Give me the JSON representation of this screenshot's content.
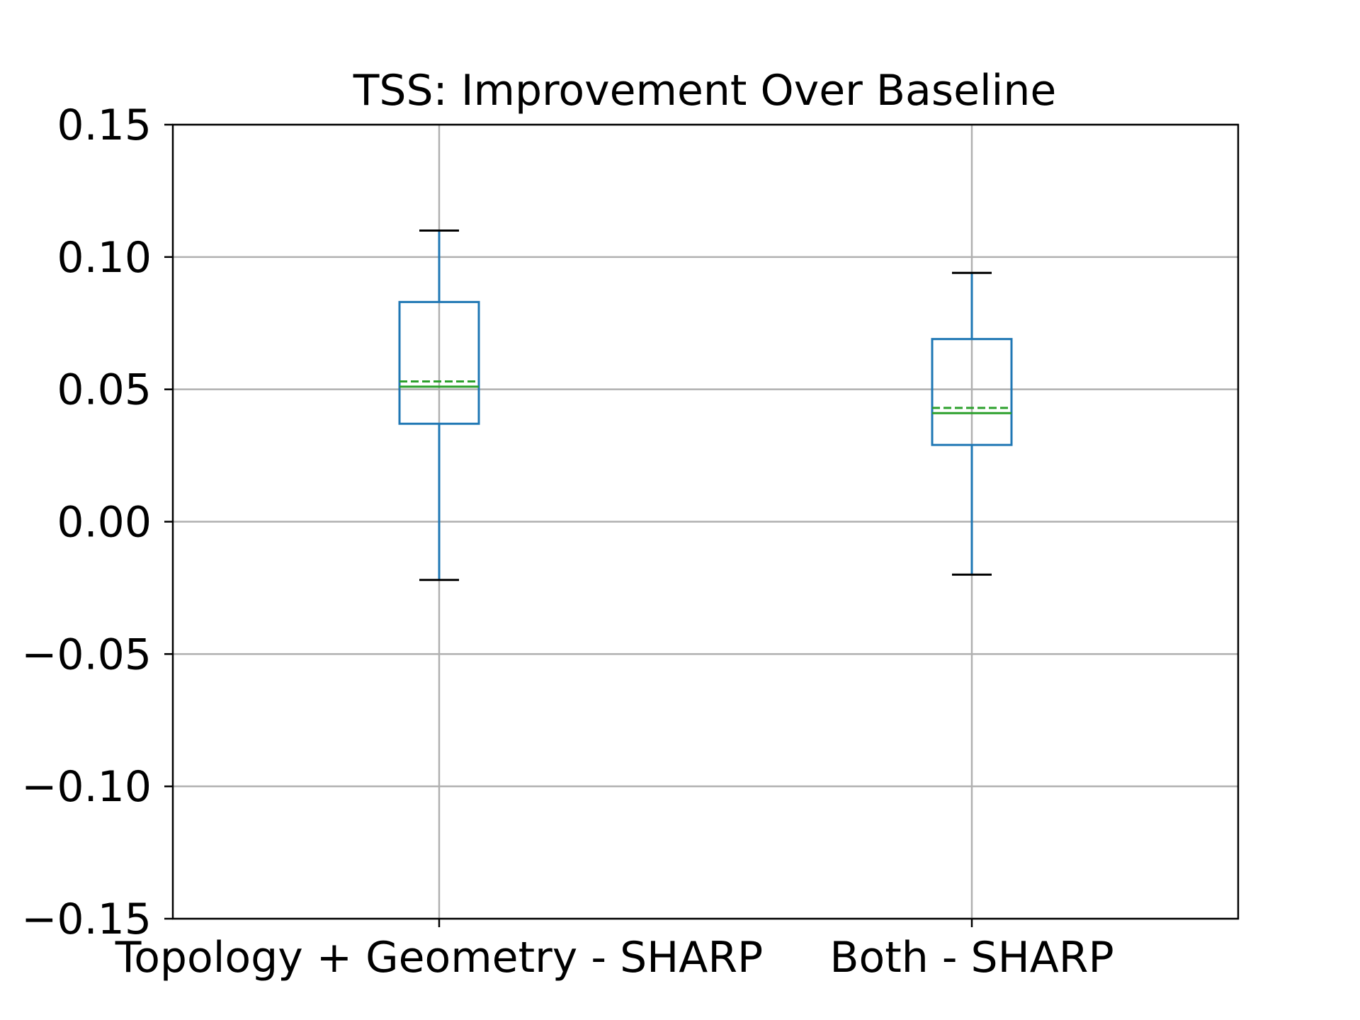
{
  "chart_data": {
    "type": "box",
    "title": "TSS: Improvement Over Baseline",
    "xlabel": "",
    "ylabel": "",
    "categories": [
      "Topology + Geometry - SHARP",
      "Both - SHARP"
    ],
    "ylim": [
      -0.15,
      0.15
    ],
    "yticks": [
      -0.15,
      -0.1,
      -0.05,
      0.0,
      0.05,
      0.1,
      0.15
    ],
    "ytick_labels": [
      "−0.15",
      "−0.10",
      "−0.05",
      "0.00",
      "0.05",
      "0.10",
      "0.15"
    ],
    "grid": true,
    "boxes": [
      {
        "whisker_low": -0.022,
        "q1": 0.037,
        "median": 0.051,
        "mean": 0.053,
        "q3": 0.083,
        "whisker_high": 0.11
      },
      {
        "whisker_low": -0.02,
        "q1": 0.029,
        "median": 0.041,
        "mean": 0.043,
        "q3": 0.069,
        "whisker_high": 0.094
      }
    ],
    "colors": {
      "box": "#1f77b4",
      "median": "#2ca02c",
      "mean": "#2ca02c",
      "cap": "#000000",
      "grid": "#b0b0b0"
    }
  }
}
